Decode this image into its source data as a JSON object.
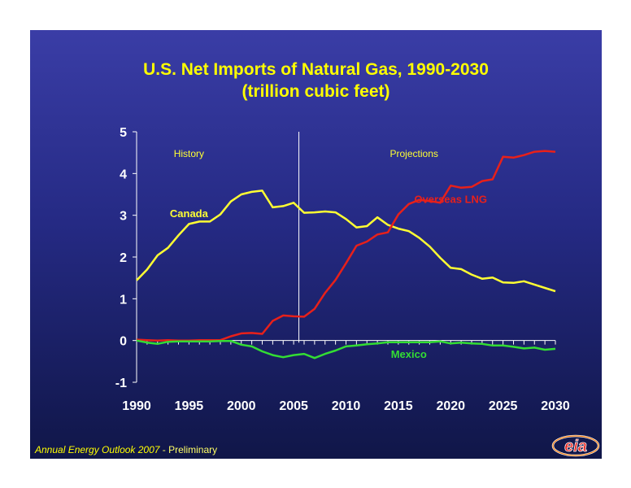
{
  "title": "U.S. Net Imports of Natural Gas, 1990-2030",
  "subtitle": "(trillion cubic feet)",
  "footer": {
    "italic": "Annual Energy Outlook 2007",
    "plain": " - Preliminary"
  },
  "logo_text": "eia",
  "colors": {
    "canada": "#ffff33",
    "lng": "#e8201a",
    "mexico": "#33dd33",
    "title": "#ffff00",
    "axis": "#ffffff"
  },
  "chart_data": {
    "type": "line",
    "title": "U.S. Net Imports of Natural Gas, 1990-2030",
    "subtitle": "(trillion cubic feet)",
    "xlim": [
      1990,
      2030
    ],
    "ylim": [
      -1,
      5
    ],
    "xticks": [
      1990,
      1995,
      2000,
      2005,
      2010,
      2015,
      2020,
      2025,
      2030
    ],
    "yticks": [
      -1,
      0,
      1,
      2,
      3,
      4,
      5
    ],
    "divider_x": 2005.5,
    "region_labels": [
      {
        "text": "History",
        "x": 1995,
        "y": 4.4
      },
      {
        "text": "Projections",
        "x": 2016.5,
        "y": 4.4
      }
    ],
    "series": [
      {
        "name": "Canada",
        "label": {
          "text": "Canada",
          "x": 1995,
          "y": 2.95
        },
        "x": [
          1990,
          1991,
          1992,
          1993,
          1994,
          1995,
          1996,
          1997,
          1998,
          1999,
          2000,
          2001,
          2002,
          2003,
          2004,
          2005,
          2006,
          2007,
          2008,
          2009,
          2010,
          2011,
          2012,
          2013,
          2014,
          2015,
          2016,
          2017,
          2018,
          2019,
          2020,
          2021,
          2022,
          2023,
          2024,
          2025,
          2026,
          2027,
          2028,
          2029,
          2030
        ],
        "values": [
          1.44,
          1.7,
          2.04,
          2.22,
          2.52,
          2.79,
          2.85,
          2.85,
          3.02,
          3.33,
          3.5,
          3.56,
          3.59,
          3.19,
          3.22,
          3.3,
          3.06,
          3.07,
          3.09,
          3.07,
          2.91,
          2.71,
          2.74,
          2.95,
          2.77,
          2.68,
          2.62,
          2.46,
          2.25,
          1.98,
          1.74,
          1.71,
          1.58,
          1.48,
          1.51,
          1.39,
          1.38,
          1.42,
          1.34,
          1.26,
          1.18
        ]
      },
      {
        "name": "Overseas LNG",
        "label": {
          "text": "Overseas LNG",
          "x": 2020,
          "y": 3.3
        },
        "x": [
          1990,
          1991,
          1992,
          1993,
          1994,
          1995,
          1996,
          1997,
          1998,
          1999,
          2000,
          2001,
          2002,
          2003,
          2004,
          2005,
          2006,
          2007,
          2008,
          2009,
          2010,
          2011,
          2012,
          2013,
          2014,
          2015,
          2016,
          2017,
          2018,
          2019,
          2020,
          2021,
          2022,
          2023,
          2024,
          2025,
          2026,
          2027,
          2028,
          2029,
          2030
        ],
        "values": [
          0.02,
          0.01,
          0.0,
          0.01,
          0.0,
          0.0,
          0.01,
          0.01,
          0.01,
          0.1,
          0.17,
          0.18,
          0.16,
          0.47,
          0.6,
          0.58,
          0.57,
          0.76,
          1.14,
          1.45,
          1.85,
          2.27,
          2.37,
          2.54,
          2.59,
          3.02,
          3.27,
          3.37,
          3.34,
          3.3,
          3.71,
          3.66,
          3.68,
          3.82,
          3.86,
          4.4,
          4.38,
          4.44,
          4.52,
          4.54,
          4.52
        ]
      },
      {
        "name": "Mexico",
        "label": {
          "text": "Mexico",
          "x": 2016,
          "y": -0.42
        },
        "x": [
          1990,
          1991,
          1992,
          1993,
          1994,
          1995,
          1996,
          1997,
          1998,
          1999,
          2000,
          2001,
          2002,
          2003,
          2004,
          2005,
          2006,
          2007,
          2008,
          2009,
          2010,
          2011,
          2012,
          2013,
          2014,
          2015,
          2016,
          2017,
          2018,
          2019,
          2020,
          2021,
          2022,
          2023,
          2024,
          2025,
          2026,
          2027,
          2028,
          2029,
          2030
        ],
        "values": [
          0.0,
          -0.05,
          -0.08,
          -0.03,
          -0.02,
          -0.02,
          -0.02,
          -0.02,
          -0.01,
          -0.01,
          -0.1,
          -0.14,
          -0.26,
          -0.35,
          -0.4,
          -0.35,
          -0.32,
          -0.42,
          -0.32,
          -0.24,
          -0.14,
          -0.12,
          -0.09,
          -0.07,
          -0.04,
          -0.04,
          -0.04,
          -0.04,
          -0.04,
          -0.02,
          -0.07,
          -0.05,
          -0.07,
          -0.08,
          -0.12,
          -0.12,
          -0.15,
          -0.19,
          -0.17,
          -0.22,
          -0.2
        ]
      }
    ]
  }
}
